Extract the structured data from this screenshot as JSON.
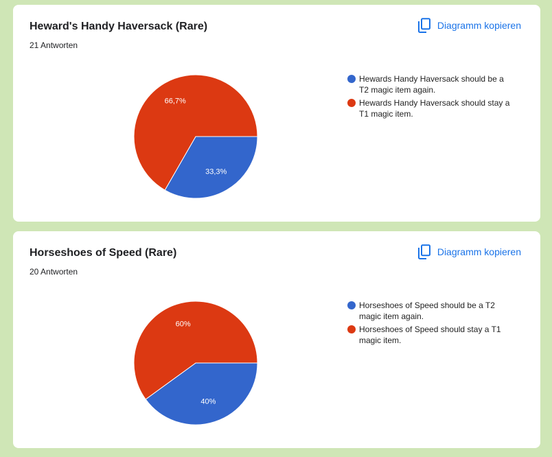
{
  "copy_label": "Diagramm kopieren",
  "copy_icon": "copy-icon",
  "colors": {
    "blue": "#3366cc",
    "red": "#dc3912",
    "link": "#1a73e8",
    "background": "#cfe6b6"
  },
  "chart_data": [
    {
      "type": "pie",
      "title": "Heward's Handy Haversack (Rare)",
      "response_count": "21 Antworten",
      "series": [
        {
          "name": "Hewards Handy Haversack should be a T2 magic item again.",
          "value": 33.3,
          "label": "33,3%",
          "color": "#3366cc"
        },
        {
          "name": "Hewards Handy Haversack should stay a T1 magic item.",
          "value": 66.7,
          "label": "66,7%",
          "color": "#dc3912"
        }
      ],
      "legend_position": "right"
    },
    {
      "type": "pie",
      "title": "Horseshoes of Speed (Rare)",
      "response_count": "20 Antworten",
      "series": [
        {
          "name": "Horseshoes of Speed should be a T2 magic item again.",
          "value": 40,
          "label": "40%",
          "color": "#3366cc"
        },
        {
          "name": "Horseshoes of Speed should stay a T1 magic item.",
          "value": 60,
          "label": "60%",
          "color": "#dc3912"
        }
      ],
      "legend_position": "right"
    }
  ]
}
